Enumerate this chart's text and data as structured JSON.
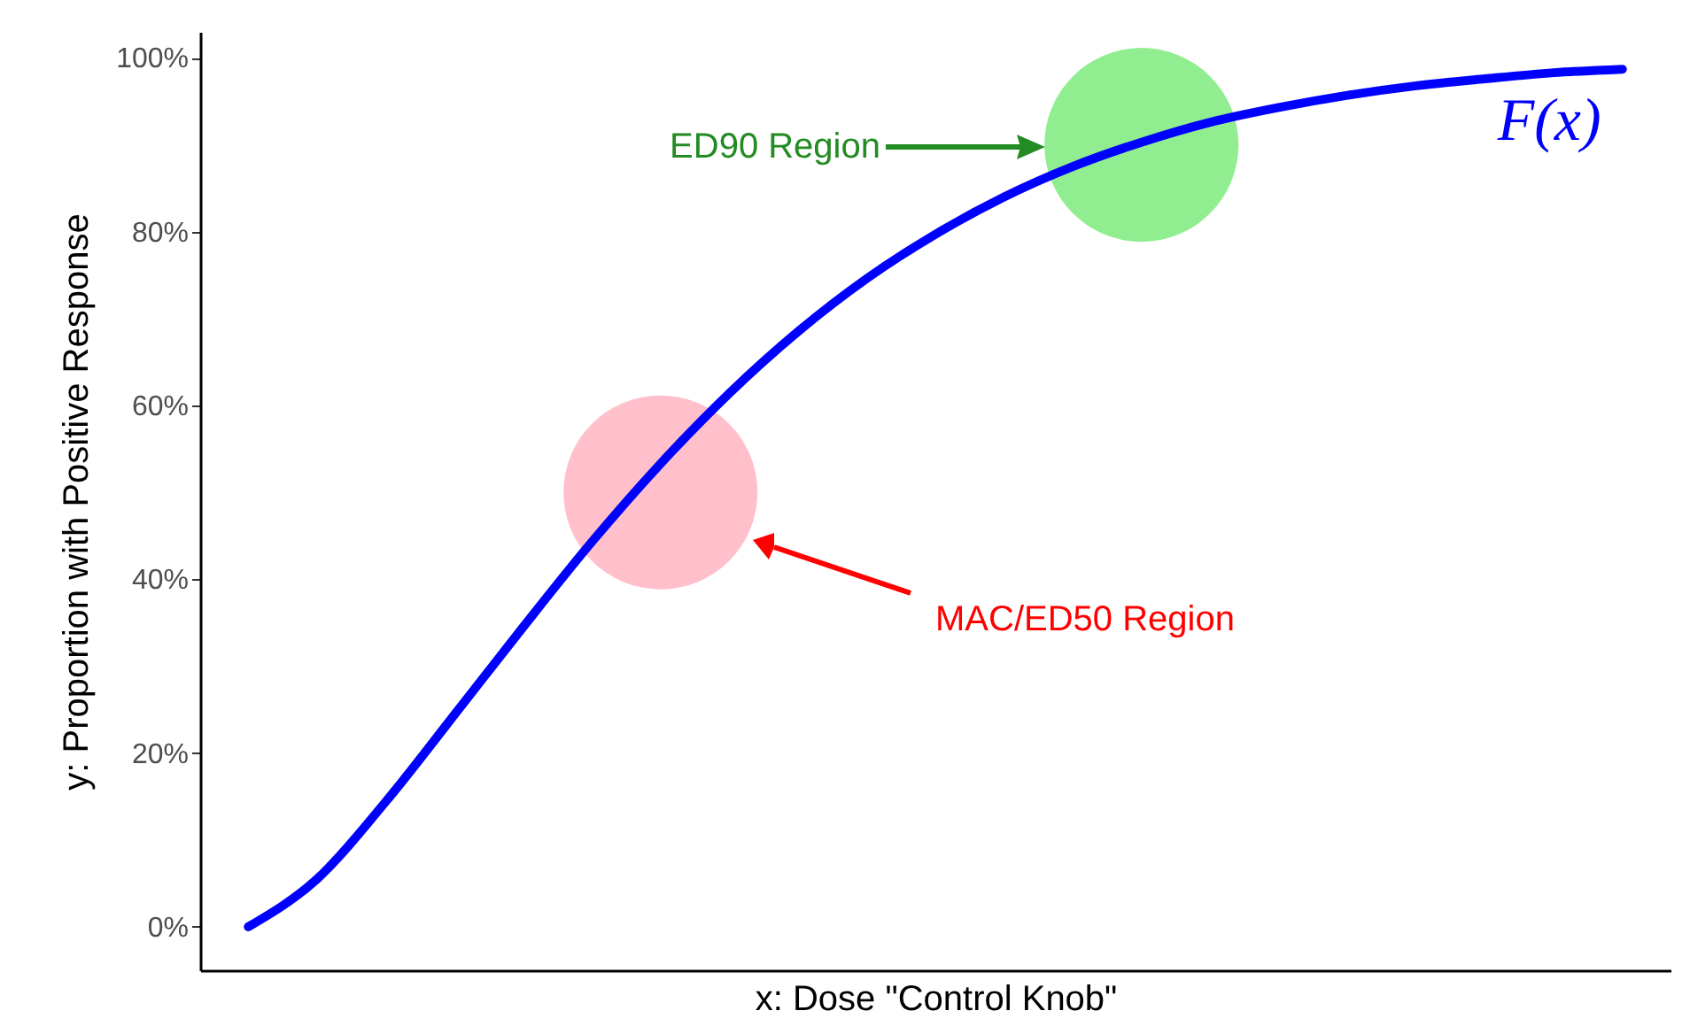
{
  "chart_data": {
    "type": "line",
    "xlabel": "x: Dose \"Control Knob\"",
    "ylabel": "y: Proportion with Positive Response",
    "categories": [
      null,
      null,
      null,
      null,
      null,
      null,
      null,
      null,
      null,
      null,
      null,
      null,
      null,
      null,
      null,
      null,
      null,
      null,
      null,
      null,
      null
    ],
    "series": [
      {
        "name": "F(x)",
        "color": "#0000ff",
        "marker": "none",
        "values": [
          0,
          5.5,
          14.4,
          24.4,
          34.5,
          44.3,
          53.3,
          61.4,
          68.5,
          74.6,
          79.7,
          84.0,
          87.5,
          90.3,
          92.6,
          94.3,
          95.7,
          96.8,
          97.6,
          98.3,
          98.7
        ]
      },
      {
        "type": "scatter",
        "color": "#ffc0cb",
        "marker": "circle",
        "values": [
          null,
          null,
          null,
          null,
          null,
          null,
          50,
          null,
          null,
          null,
          null,
          null,
          null,
          null,
          null,
          null,
          null,
          null,
          null,
          null,
          null
        ]
      },
      {
        "type": "scatter",
        "color": "#90ee90",
        "marker": "circle",
        "values": [
          null,
          null,
          null,
          null,
          null,
          null,
          null,
          null,
          null,
          null,
          null,
          null,
          null,
          90,
          null,
          null,
          null,
          null,
          null,
          null,
          null
        ]
      }
    ],
    "annotations": [
      "ED90 Region",
      "MAC/ED50 Region"
    ],
    "ylim": [
      -5,
      103
    ],
    "yticks": [
      {
        "value": 0,
        "label": "0%"
      },
      {
        "value": 20,
        "label": "20%"
      },
      {
        "value": 40,
        "label": "40%"
      },
      {
        "value": 60,
        "label": "60%"
      },
      {
        "value": 80,
        "label": "80%"
      },
      {
        "value": 100,
        "label": "100%"
      }
    ],
    "tick_labels": "y"
  }
}
